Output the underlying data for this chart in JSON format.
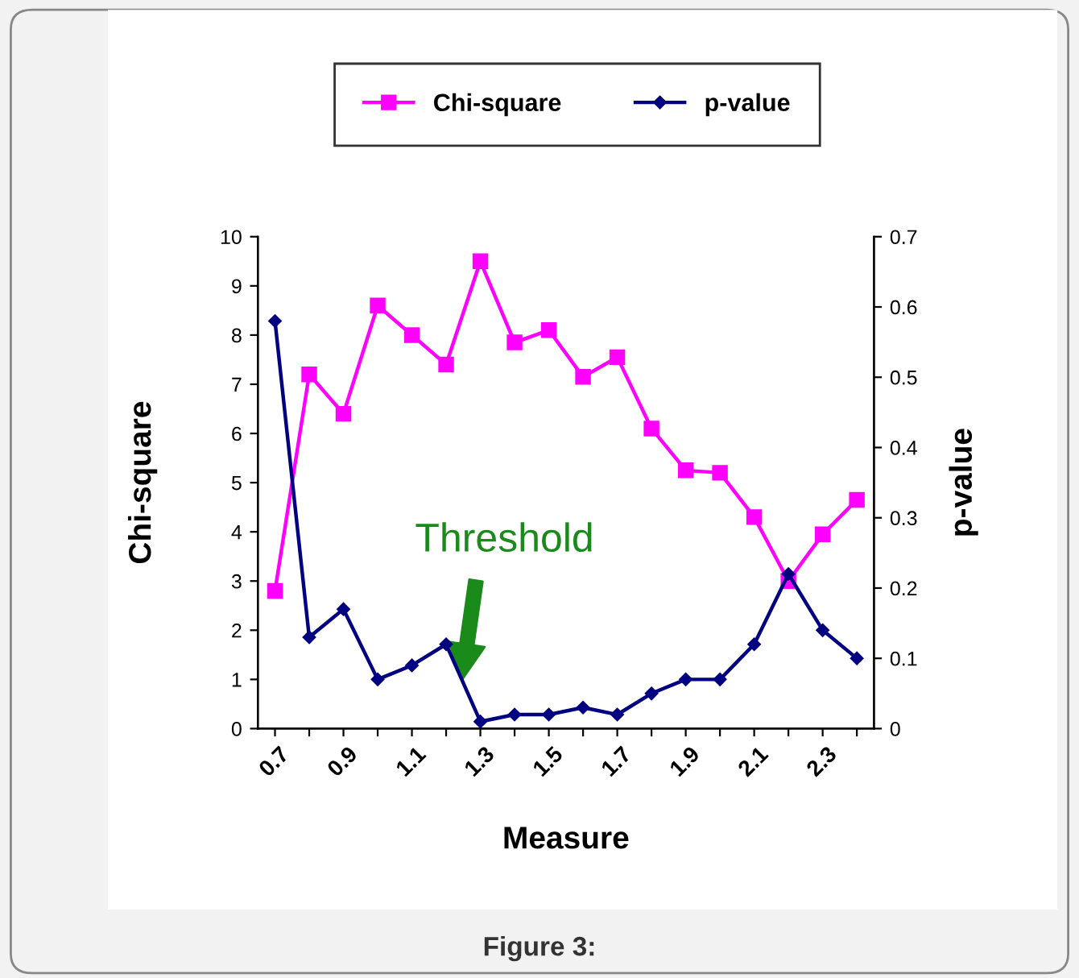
{
  "chart_data": {
    "type": "line",
    "xlabel": "Measure",
    "ylabel": "Chi-square",
    "y2label": "p-value",
    "categories": [
      "0.7",
      null,
      "0.9",
      null,
      "1.1",
      null,
      "1.3",
      null,
      "1.5",
      null,
      "1.7",
      null,
      "1.9",
      null,
      "2.1",
      null,
      "2.3",
      null
    ],
    "series": [
      {
        "name": "Chi-square",
        "color": "#ff00ff",
        "marker": "square",
        "values": [
          2.8,
          7.2,
          6.4,
          8.6,
          8.0,
          7.4,
          9.5,
          7.85,
          8.1,
          7.15,
          7.55,
          6.1,
          5.25,
          5.2,
          4.3,
          3.0,
          3.95,
          4.65
        ]
      },
      {
        "name": "p-value",
        "color": "#000080",
        "marker": "diamond",
        "axis": "y2",
        "values": [
          0.58,
          0.13,
          0.17,
          0.07,
          0.09,
          0.12,
          0.01,
          0.02,
          0.02,
          0.03,
          0.02,
          0.05,
          0.07,
          0.07,
          0.12,
          0.22,
          0.14,
          0.1
        ]
      }
    ],
    "ylim": [
      0,
      10
    ],
    "yticks": [
      0,
      1,
      2,
      3,
      4,
      5,
      6,
      7,
      8,
      9,
      10
    ],
    "y2lim": [
      0,
      0.7
    ],
    "y2ticks": [
      0,
      0.1,
      0.2,
      0.3,
      0.4,
      0.5,
      0.6,
      0.7
    ],
    "grid": false,
    "legend": "top",
    "line_style": "solid",
    "annotations": [
      "Threshold",
      "Figure 3:"
    ]
  }
}
